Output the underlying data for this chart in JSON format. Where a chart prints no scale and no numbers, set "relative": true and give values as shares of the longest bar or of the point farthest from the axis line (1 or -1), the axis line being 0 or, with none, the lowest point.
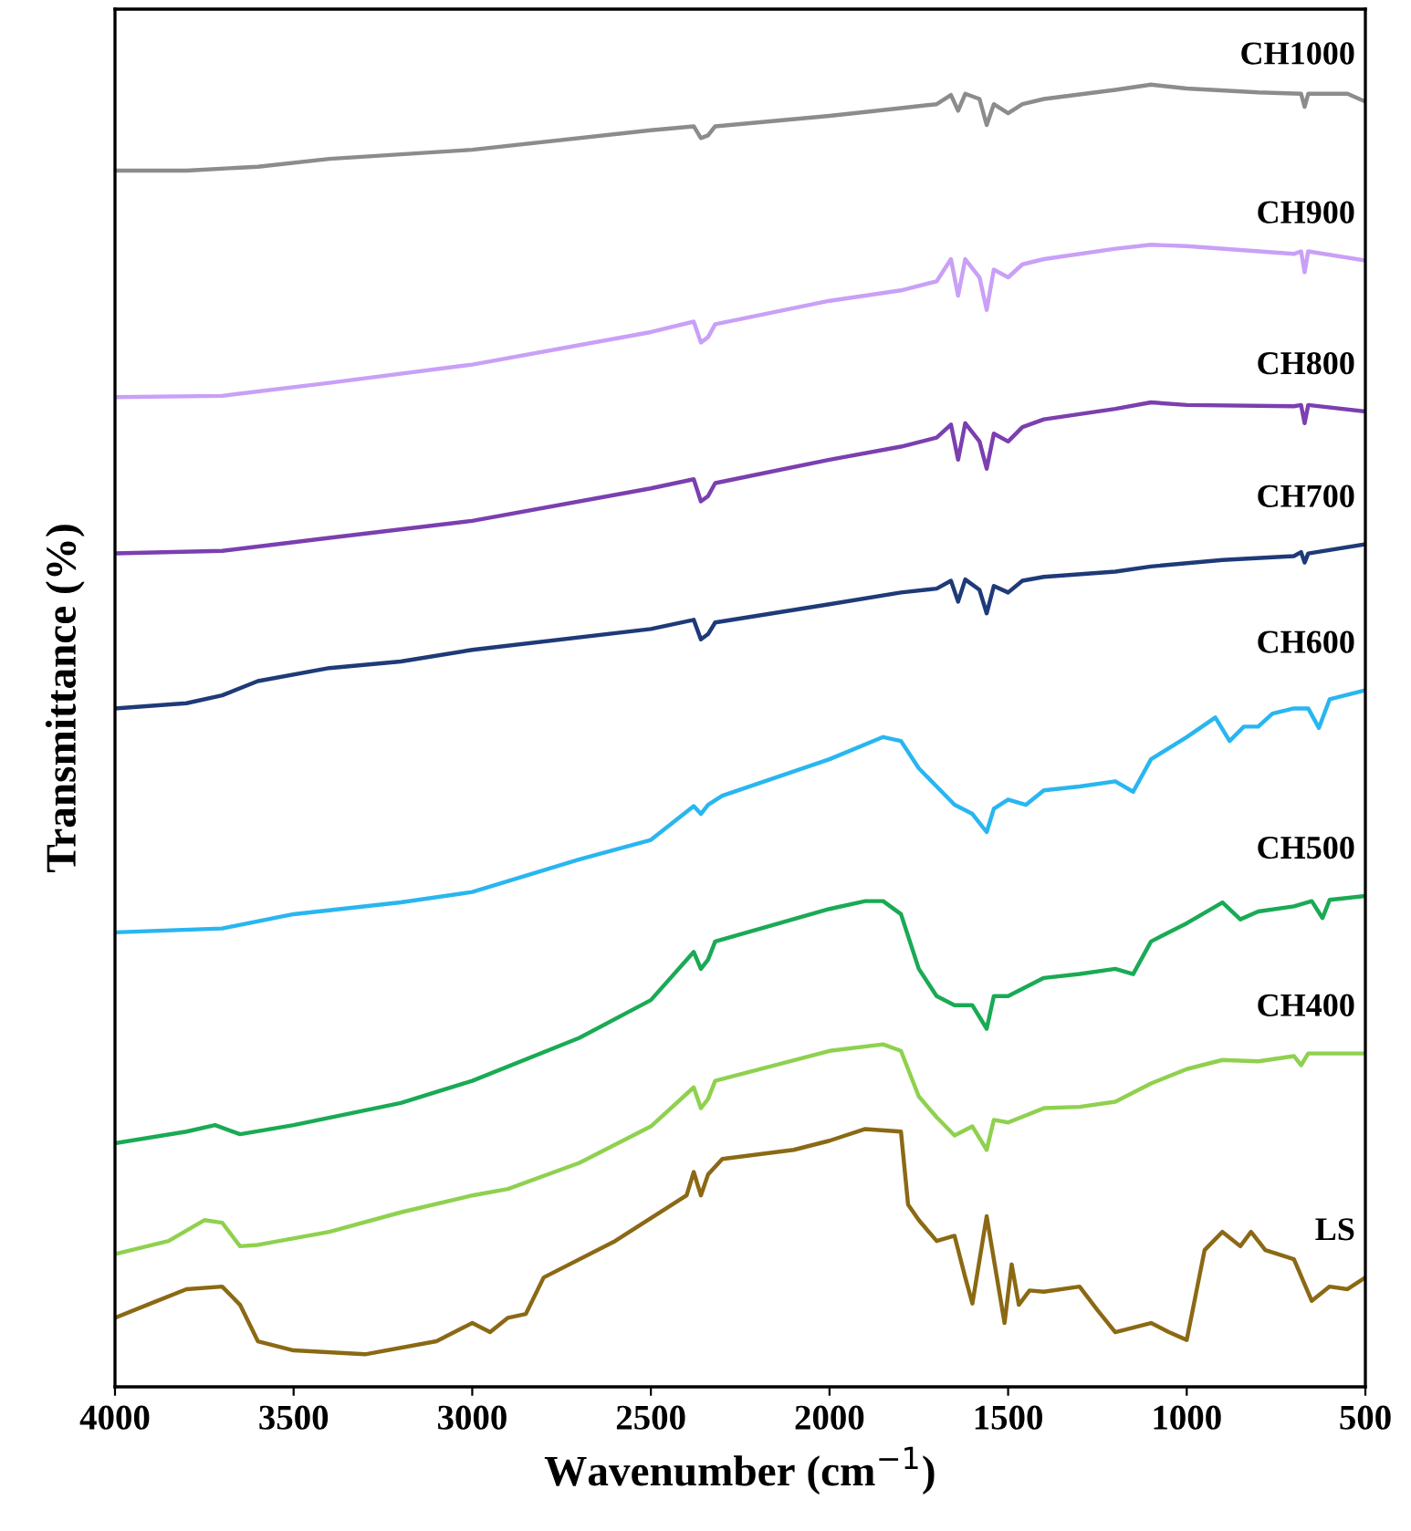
{
  "chart_data": {
    "type": "line",
    "relative": true,
    "xlabel": "Wavenumber (cm$^{−1}$)",
    "ylabel": "Transmittance (%)",
    "xlim": [
      4000,
      500
    ],
    "xticks": [
      4000,
      3500,
      3000,
      2500,
      2000,
      1500,
      1000,
      500
    ],
    "tick_labels": "x",
    "grid": false,
    "legend": false,
    "series": [
      {
        "name": "CH1000",
        "color": "#8c8c8c",
        "x": [
          4000,
          3800,
          3600,
          3400,
          3000,
          2500,
          2380,
          2360,
          2340,
          2320,
          2000,
          1800,
          1700,
          1660,
          1640,
          1620,
          1580,
          1560,
          1540,
          1500,
          1460,
          1400,
          1200,
          1100,
          1000,
          800,
          680,
          670,
          660,
          550,
          500
        ],
        "values": [
          0.934,
          0.934,
          0.937,
          0.943,
          0.95,
          0.965,
          0.968,
          0.959,
          0.961,
          0.968,
          0.976,
          0.982,
          0.985,
          0.992,
          0.98,
          0.993,
          0.989,
          0.969,
          0.985,
          0.978,
          0.985,
          0.989,
          0.996,
          1.0,
          0.997,
          0.994,
          0.993,
          0.983,
          0.993,
          0.993,
          0.987
        ]
      },
      {
        "name": "CH900",
        "color": "#c9a0f7",
        "x": [
          4000,
          3700,
          3400,
          3000,
          2500,
          2380,
          2360,
          2340,
          2320,
          2000,
          1800,
          1700,
          1660,
          1640,
          1620,
          1580,
          1560,
          1540,
          1500,
          1460,
          1400,
          1200,
          1100,
          1000,
          700,
          680,
          670,
          660,
          500
        ],
        "values": [
          0.76,
          0.761,
          0.771,
          0.785,
          0.81,
          0.818,
          0.802,
          0.806,
          0.816,
          0.834,
          0.842,
          0.849,
          0.866,
          0.838,
          0.866,
          0.852,
          0.827,
          0.858,
          0.852,
          0.862,
          0.866,
          0.874,
          0.877,
          0.876,
          0.87,
          0.872,
          0.856,
          0.872,
          0.865
        ]
      },
      {
        "name": "CH800",
        "color": "#7b3fb0",
        "x": [
          4000,
          3700,
          3400,
          3000,
          2500,
          2380,
          2360,
          2340,
          2320,
          2000,
          1800,
          1700,
          1660,
          1640,
          1620,
          1580,
          1560,
          1540,
          1500,
          1460,
          1400,
          1200,
          1100,
          1000,
          700,
          680,
          670,
          660,
          500
        ],
        "values": [
          0.64,
          0.642,
          0.652,
          0.665,
          0.69,
          0.697,
          0.68,
          0.684,
          0.694,
          0.712,
          0.722,
          0.729,
          0.739,
          0.712,
          0.74,
          0.726,
          0.705,
          0.732,
          0.726,
          0.737,
          0.743,
          0.751,
          0.756,
          0.754,
          0.753,
          0.754,
          0.74,
          0.754,
          0.749
        ]
      },
      {
        "name": "CH700",
        "color": "#1f3a78",
        "x": [
          4000,
          3800,
          3700,
          3600,
          3400,
          3200,
          3000,
          2500,
          2380,
          2360,
          2340,
          2320,
          2000,
          1800,
          1700,
          1660,
          1640,
          1620,
          1580,
          1560,
          1540,
          1500,
          1460,
          1400,
          1200,
          1100,
          900,
          700,
          680,
          670,
          660,
          500
        ],
        "values": [
          0.521,
          0.525,
          0.531,
          0.542,
          0.552,
          0.557,
          0.566,
          0.582,
          0.589,
          0.574,
          0.578,
          0.587,
          0.601,
          0.61,
          0.613,
          0.619,
          0.603,
          0.62,
          0.612,
          0.594,
          0.615,
          0.61,
          0.619,
          0.622,
          0.626,
          0.63,
          0.635,
          0.638,
          0.641,
          0.633,
          0.64,
          0.647
        ]
      },
      {
        "name": "CH600",
        "color": "#29b6f0",
        "x": [
          4000,
          3700,
          3500,
          3200,
          3000,
          2700,
          2500,
          2380,
          2360,
          2340,
          2300,
          2000,
          1850,
          1800,
          1750,
          1700,
          1650,
          1600,
          1560,
          1540,
          1500,
          1450,
          1400,
          1300,
          1200,
          1150,
          1100,
          1000,
          920,
          880,
          840,
          800,
          760,
          700,
          660,
          630,
          600,
          500
        ],
        "values": [
          0.349,
          0.352,
          0.363,
          0.372,
          0.38,
          0.405,
          0.42,
          0.446,
          0.44,
          0.447,
          0.454,
          0.482,
          0.499,
          0.496,
          0.475,
          0.461,
          0.447,
          0.44,
          0.426,
          0.444,
          0.451,
          0.447,
          0.458,
          0.461,
          0.465,
          0.457,
          0.482,
          0.499,
          0.514,
          0.496,
          0.507,
          0.507,
          0.517,
          0.521,
          0.521,
          0.506,
          0.528,
          0.535
        ]
      },
      {
        "name": "CH500",
        "color": "#1aaa55",
        "x": [
          4000,
          3800,
          3720,
          3650,
          3500,
          3200,
          3000,
          2700,
          2500,
          2380,
          2360,
          2340,
          2320,
          2000,
          1900,
          1850,
          1800,
          1750,
          1700,
          1650,
          1600,
          1560,
          1540,
          1500,
          1400,
          1300,
          1200,
          1150,
          1100,
          1000,
          900,
          850,
          800,
          700,
          650,
          620,
          600,
          500
        ],
        "values": [
          0.187,
          0.196,
          0.201,
          0.194,
          0.201,
          0.218,
          0.235,
          0.268,
          0.297,
          0.334,
          0.321,
          0.328,
          0.342,
          0.367,
          0.373,
          0.373,
          0.363,
          0.321,
          0.3,
          0.293,
          0.293,
          0.275,
          0.3,
          0.3,
          0.314,
          0.317,
          0.321,
          0.317,
          0.342,
          0.356,
          0.372,
          0.359,
          0.365,
          0.369,
          0.373,
          0.36,
          0.374,
          0.377
        ]
      },
      {
        "name": "CH400",
        "color": "#8fd14f",
        "x": [
          4000,
          3850,
          3750,
          3700,
          3650,
          3600,
          3400,
          3200,
          3000,
          2900,
          2700,
          2500,
          2380,
          2360,
          2340,
          2320,
          2000,
          1850,
          1800,
          1750,
          1700,
          1650,
          1600,
          1560,
          1540,
          1500,
          1400,
          1300,
          1200,
          1100,
          1000,
          900,
          800,
          700,
          680,
          660,
          500
        ],
        "values": [
          0.102,
          0.112,
          0.128,
          0.126,
          0.108,
          0.109,
          0.119,
          0.134,
          0.147,
          0.152,
          0.172,
          0.2,
          0.23,
          0.214,
          0.221,
          0.235,
          0.258,
          0.263,
          0.258,
          0.223,
          0.207,
          0.193,
          0.2,
          0.182,
          0.205,
          0.203,
          0.214,
          0.215,
          0.219,
          0.233,
          0.244,
          0.251,
          0.25,
          0.254,
          0.247,
          0.256,
          0.256
        ]
      },
      {
        "name": "LS",
        "color": "#8b6914",
        "x": [
          4000,
          3900,
          3800,
          3700,
          3650,
          3600,
          3500,
          3300,
          3100,
          3000,
          2950,
          2900,
          2850,
          2800,
          2600,
          2400,
          2380,
          2360,
          2340,
          2300,
          2100,
          2000,
          1900,
          1800,
          1780,
          1750,
          1700,
          1650,
          1620,
          1600,
          1560,
          1540,
          1510,
          1490,
          1470,
          1440,
          1400,
          1300,
          1250,
          1200,
          1100,
          1050,
          1000,
          950,
          900,
          850,
          820,
          780,
          700,
          650,
          600,
          550,
          500
        ],
        "values": [
          0.053,
          0.064,
          0.075,
          0.077,
          0.063,
          0.035,
          0.028,
          0.025,
          0.035,
          0.049,
          0.042,
          0.053,
          0.056,
          0.084,
          0.112,
          0.147,
          0.165,
          0.147,
          0.163,
          0.175,
          0.182,
          0.189,
          0.198,
          0.196,
          0.14,
          0.128,
          0.112,
          0.116,
          0.084,
          0.064,
          0.131,
          0.098,
          0.049,
          0.094,
          0.063,
          0.074,
          0.073,
          0.077,
          0.059,
          0.042,
          0.049,
          0.042,
          0.036,
          0.105,
          0.119,
          0.108,
          0.119,
          0.105,
          0.098,
          0.066,
          0.077,
          0.075,
          0.084
        ]
      }
    ]
  }
}
